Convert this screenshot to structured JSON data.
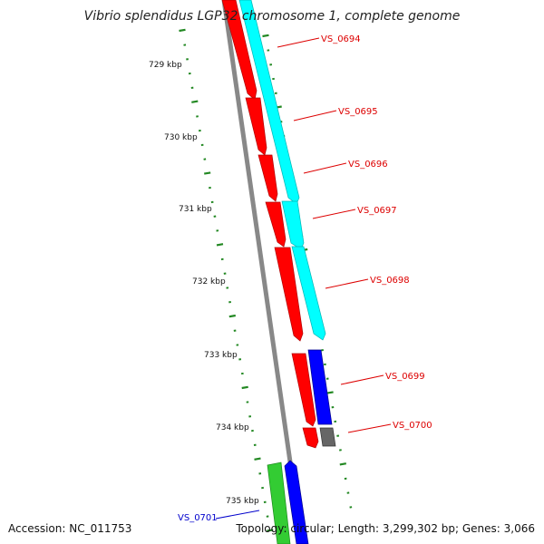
{
  "title": "Vibrio splendidus LGP32 chromosome 1, complete genome",
  "footer": {
    "accession": "Accession: NC_011753",
    "summary": "Topology: circular; Length: 3,299,302 bp; Genes: 3,066"
  },
  "colors": {
    "forward_cds": "#ff0000",
    "forward_cds_alt": "#00ffff",
    "reverse_cds": "#0000ff",
    "other_feature": "#666666",
    "rrna": "#33cc33",
    "tick": "#228822",
    "backbone": "#888888",
    "label_forward": "#dd0000",
    "label_reverse": "#0000cc"
  },
  "kbp_labels": [
    "729 kbp",
    "730 kbp",
    "731 kbp",
    "732 kbp",
    "733 kbp",
    "734 kbp",
    "735 kbp"
  ],
  "gene_labels": [
    {
      "text": "VS_0694",
      "strand": "forward"
    },
    {
      "text": "VS_0695",
      "strand": "forward"
    },
    {
      "text": "VS_0696",
      "strand": "forward"
    },
    {
      "text": "VS_0697",
      "strand": "forward"
    },
    {
      "text": "VS_0698",
      "strand": "forward"
    },
    {
      "text": "VS_0699",
      "strand": "forward"
    },
    {
      "text": "VS_0700",
      "strand": "forward"
    },
    {
      "text": "VS_0701",
      "strand": "reverse"
    }
  ]
}
